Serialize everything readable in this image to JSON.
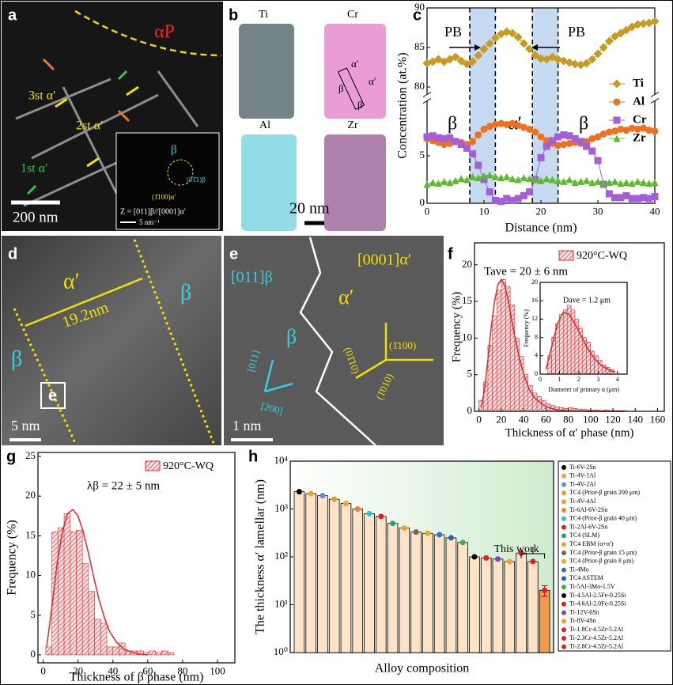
{
  "images": {
    "a": {
      "label": "a",
      "phase": "αP",
      "lamellae": [
        "3st α′",
        "2st α′",
        "1st α′"
      ],
      "scale": "200 nm",
      "inset": {
        "beta": "β",
        "plane_beta": "(01̄1)β",
        "plane_alpha": "(1̄100)α′",
        "zone": "Z = [011]β//[0001]α′",
        "scale": "5 nm⁻¹"
      }
    },
    "b": {
      "label": "b",
      "elements": [
        "Ti",
        "Cr",
        "Al",
        "Zr"
      ],
      "phases": [
        "α′",
        "α′",
        "β",
        "β"
      ],
      "scale": "20 nm"
    },
    "d": {
      "label": "d",
      "phases": [
        "α′",
        "β",
        "β"
      ],
      "width": "19.2nm",
      "box": "e",
      "scale": "5 nm"
    },
    "e": {
      "label": "e",
      "zones": [
        "[0001]α′",
        "[011]β"
      ],
      "phases": [
        "α′",
        "β"
      ],
      "planes": [
        "(01̄10)",
        "(1̄100)",
        "(1̄010)"
      ],
      "directions": [
        "[011]",
        "[200]"
      ],
      "scale": "1 nm"
    }
  },
  "chart_data": [
    {
      "type": "line",
      "label": "c",
      "xlabel": "Distance (nm)",
      "ylabel": "Concentration (at.%)",
      "x": [
        0,
        1,
        2,
        3,
        4,
        5,
        6,
        7,
        8,
        9,
        10,
        11,
        12,
        13,
        14,
        15,
        16,
        17,
        18,
        19,
        20,
        21,
        22,
        23,
        24,
        25,
        26,
        27,
        28,
        29,
        30,
        31,
        32,
        33,
        34,
        35,
        36,
        37,
        38,
        39,
        40
      ],
      "xlim": [
        0,
        40
      ],
      "xticks": [
        0,
        10,
        20,
        30,
        40
      ],
      "ylim": [
        0,
        90
      ],
      "y_break": [
        10,
        80
      ],
      "yticks": [
        0,
        5,
        80,
        85,
        90
      ],
      "bands": [
        [
          7.5,
          12
        ],
        [
          18.5,
          23
        ]
      ],
      "band_color": "#c6daf2",
      "band_labels": [
        "PB",
        "PB"
      ],
      "region_labels": [
        "β",
        "α′",
        "β"
      ],
      "legend": "right",
      "series": [
        {
          "name": "Ti",
          "color": "#c89a22",
          "marker": "diamond",
          "values": [
            83,
            83.2,
            83.5,
            83.2,
            83.5,
            83.8,
            83.3,
            82.9,
            83.2,
            84,
            84.8,
            85.5,
            86.2,
            86.7,
            87,
            86.8,
            86.3,
            85.5,
            84.8,
            84,
            83.6,
            83.5,
            83.8,
            83.5,
            83.3,
            83.1,
            82.9,
            82.8,
            83,
            83.5,
            84.2,
            85,
            85.8,
            86.4,
            86.8,
            87.2,
            87.6,
            87.9,
            88,
            88.1,
            88.3
          ]
        },
        {
          "name": "Al",
          "color": "#f07020",
          "marker": "circle",
          "values": [
            6.8,
            6.6,
            6.4,
            6.2,
            6.3,
            6.5,
            6.4,
            6.2,
            6.5,
            7.2,
            7.8,
            8.1,
            8.3,
            8.4,
            8.3,
            8.4,
            8.2,
            8,
            7.8,
            7.5,
            7,
            6.6,
            6.3,
            6.1,
            6.2,
            6.3,
            6.4,
            6.3,
            6.5,
            6.8,
            7,
            7.3,
            7.5,
            7.6,
            7.8,
            7.7,
            7.9,
            7.8,
            7.9,
            7.7,
            7.6
          ]
        },
        {
          "name": "Cr",
          "color": "#a45fd8",
          "marker": "square",
          "values": [
            7,
            7.1,
            6.9,
            6.8,
            6.9,
            6.5,
            6.2,
            5.8,
            5.2,
            4,
            2.5,
            1.2,
            0.3,
            0.2,
            0.5,
            0.3,
            0.5,
            0.8,
            1.2,
            2.5,
            4.8,
            6,
            6.6,
            7,
            7.2,
            7.1,
            6.8,
            6.5,
            6,
            5.5,
            4.5,
            2,
            1,
            0.6,
            0.6,
            0.8,
            0.5,
            0.5,
            0.6,
            0.5,
            0.7
          ]
        },
        {
          "name": "Zr",
          "color": "#5cb82c",
          "marker": "triangle",
          "values": [
            2,
            2.2,
            2.1,
            2.3,
            2.2,
            2.4,
            2.6,
            2.5,
            2.8,
            2.7,
            2.9,
            3,
            2.8,
            2.7,
            2.8,
            2.6,
            2.5,
            2.7,
            2.6,
            2.5,
            2.4,
            2.6,
            2.5,
            2.4,
            2.3,
            2.5,
            2.2,
            2.3,
            2.4,
            2.2,
            2.3,
            2.1,
            2.2,
            2.3,
            2.1,
            2.2,
            2.1,
            2.3,
            2.2,
            2.1,
            2.2
          ]
        }
      ]
    },
    {
      "type": "histogram",
      "label": "f",
      "xlabel": "Thickness of α′ phase (nm)",
      "ylabel": "Frequency (%)",
      "name": "920°C-WQ",
      "annotation": "Tave = 20 ± 6 nm",
      "color": "#e0262b",
      "bins": [
        0,
        4,
        8,
        12,
        16,
        20,
        24,
        28,
        32,
        36,
        40,
        44,
        48,
        52,
        56,
        60,
        64,
        68,
        72,
        76,
        80,
        84,
        88,
        92,
        96,
        100,
        104,
        108,
        112,
        116,
        120,
        124,
        128,
        132
      ],
      "values": [
        1.5,
        4,
        9,
        13,
        16.5,
        18,
        17,
        14.5,
        10,
        7.5,
        5,
        3.5,
        2.5,
        2,
        1.5,
        1,
        0.8,
        0.6,
        0.5,
        0.4,
        0.5,
        0.4,
        0.3,
        0.3,
        0.2,
        0.2,
        0.2,
        0.1,
        0.2,
        0.1,
        0.1,
        0.1,
        0.1
      ],
      "fit": {
        "x": [
          2,
          5,
          8,
          11,
          14,
          17,
          20,
          23,
          26,
          29,
          32,
          36,
          40,
          45,
          50,
          60,
          70,
          80,
          100,
          130
        ],
        "values": [
          0.5,
          3,
          7,
          11.5,
          15,
          17.3,
          18,
          17.2,
          15.3,
          12.8,
          10.3,
          7.4,
          5.1,
          3,
          1.8,
          0.6,
          0.2,
          0.05,
          0,
          0
        ]
      },
      "xlim": [
        -4,
        166
      ],
      "xticks": [
        0,
        20,
        40,
        60,
        80,
        100,
        120,
        140,
        160
      ],
      "ylim": [
        0,
        23
      ],
      "yticks": [
        0,
        5,
        10,
        15,
        20
      ],
      "inset": {
        "type": "histogram",
        "xlabel": "Diameter of primary α (μm)",
        "ylabel": "Frequency (%)",
        "annotation": "Dave = 1.2 μm",
        "color": "#e0262b",
        "bins": [
          0.4,
          0.6,
          0.8,
          1,
          1.2,
          1.4,
          1.6,
          1.8,
          2,
          2.2,
          2.4,
          2.6,
          2.8,
          3,
          3.2,
          3.4,
          3.6,
          3.8
        ],
        "values": [
          4,
          8,
          11,
          13,
          14,
          15,
          14,
          12,
          10,
          8,
          7,
          5,
          4,
          3,
          2,
          1.5,
          1
        ],
        "fit": {
          "x": [
            0.3,
            0.6,
            0.9,
            1.2,
            1.5,
            1.8,
            2.1,
            2.4,
            2.7,
            3,
            3.3,
            3.6,
            3.9
          ],
          "values": [
            1,
            6,
            11,
            13.5,
            13,
            11,
            8.5,
            6,
            4,
            2.5,
            1.5,
            0.8,
            0.5
          ]
        },
        "xlim": [
          0,
          4.5
        ],
        "xticks": [
          0,
          1,
          2,
          3,
          4
        ],
        "ylim": [
          0,
          20
        ],
        "yticks": [
          0,
          4,
          8,
          12,
          16,
          20
        ]
      }
    },
    {
      "type": "histogram",
      "label": "g",
      "xlabel": "Thickness of β phase (nm)",
      "ylabel": "Frequency (%)",
      "name": "920°C-WQ",
      "annotation": "λβ = 22 ± 5 nm",
      "color": "#e0262b",
      "bins": [
        1.5,
        5,
        8.5,
        12,
        15.5,
        19,
        22.5,
        26,
        29.5,
        33,
        36.5,
        40,
        43.5,
        47,
        50.5,
        54,
        57.5,
        61,
        64.5,
        68,
        71.5,
        75
      ],
      "values": [
        1,
        15.5,
        16,
        17.8,
        15.5,
        15.7,
        11.5,
        8,
        4.5,
        4,
        1,
        1,
        1.5,
        0.5,
        0.5,
        0.5,
        0.3,
        0.5,
        0.3,
        0.5,
        0.3
      ],
      "fit": {
        "x": [
          2,
          5,
          8,
          11,
          14,
          17,
          20,
          23,
          26,
          29,
          32,
          35,
          38,
          42,
          46,
          50,
          55,
          60
        ],
        "values": [
          1,
          6,
          11.5,
          15.5,
          17.8,
          18.3,
          17.5,
          15.5,
          12.8,
          9.8,
          7,
          4.8,
          3,
          1.6,
          0.8,
          0.4,
          0.1,
          0
        ]
      },
      "xlim": [
        -3,
        110
      ],
      "xticks": [
        0,
        20,
        40,
        60,
        80,
        100
      ],
      "ylim": [
        -1,
        25.5
      ],
      "yticks": [
        0,
        5,
        10,
        15,
        20,
        25
      ]
    },
    {
      "type": "bar",
      "label": "h",
      "xlabel": "Alloy composition",
      "ylabel": "The thickness α′ lamellar (nm)",
      "log_scale": true,
      "annotation": "This work",
      "legend": "right",
      "categories": [
        "Ti-6V-2Sn",
        "Ti-4V-1Al",
        "Ti-4V-2Al",
        "TC4 (Prior-β grain 200 μm)",
        "Ti-4V-4Al",
        "Ti-6Al-6V-2Sn",
        "TC4 (Prior-β grain 40 μm)",
        "Ti-2Al-6V-2Sn",
        "TC4 (SLM)",
        "TC4 EBM (α+α′)",
        "TC4 (Prior-β grain 15 μm)",
        "TC4 (Prior-β grain 8 μm)",
        "Ti-4Mo",
        "TC4 ASTEM",
        "Ti-5Al-3Mo-1.5V",
        "Ti-4.5Al-2.5Fe-0.25Si",
        "Ti-4.6Al-2.0Fe-0.25Si",
        "Ti-12V-6Sn",
        "Ti-8V-4Sn",
        "Ti-1.8Cr-4.5Zr-5.2Al",
        "Ti-2.3Cr-4.5Zr-5.2Al",
        "Ti-2.8Cr-4.5Zr-5.2Al"
      ],
      "values": [
        2300,
        2100,
        1900,
        1600,
        1300,
        1000,
        800,
        700,
        500,
        400,
        330,
        310,
        290,
        250,
        200,
        100,
        95,
        90,
        80,
        120,
        80,
        20
      ],
      "errors": [
        null,
        null,
        null,
        null,
        null,
        null,
        null,
        null,
        null,
        null,
        null,
        null,
        null,
        null,
        null,
        null,
        null,
        null,
        null,
        null,
        null,
        5
      ],
      "bar_colors": [
        "#fde3c8",
        "#fde3c8",
        "#fde3c8",
        "#fde3c8",
        "#fde3c8",
        "#fde3c8",
        "#fde3c8",
        "#fde3c8",
        "#fde3c8",
        "#fde3c8",
        "#fde3c8",
        "#fde3c8",
        "#fde3c8",
        "#fde3c8",
        "#fde3c8",
        "#fde3c8",
        "#fde3c8",
        "#fde3c8",
        "#fde3c8",
        "#fde3c8",
        "#fde3c8",
        "#f39a4a"
      ],
      "marker_colors": [
        "#000000",
        "#f0a030",
        "#5b8fd6",
        "#e0a030",
        "#f0a030",
        "#f08030",
        "#30c0d0",
        "#e02020",
        "#20a080",
        "#f0a030",
        "#806050",
        "#e0b020",
        "#3070d0",
        "#2060c0",
        "#40b040",
        "#000000",
        "#e02020",
        "#8040c0",
        "#f0a030",
        "#e02020",
        "#e02020",
        "#e02020"
      ],
      "ylim": [
        1,
        10000
      ],
      "yticks": [
        {
          "value": 1,
          "label": "10⁰"
        },
        {
          "value": 10,
          "label": "10¹"
        },
        {
          "value": 100,
          "label": "10²"
        },
        {
          "value": 1000,
          "label": "10³"
        },
        {
          "value": 10000,
          "label": "10⁴"
        }
      ]
    }
  ]
}
